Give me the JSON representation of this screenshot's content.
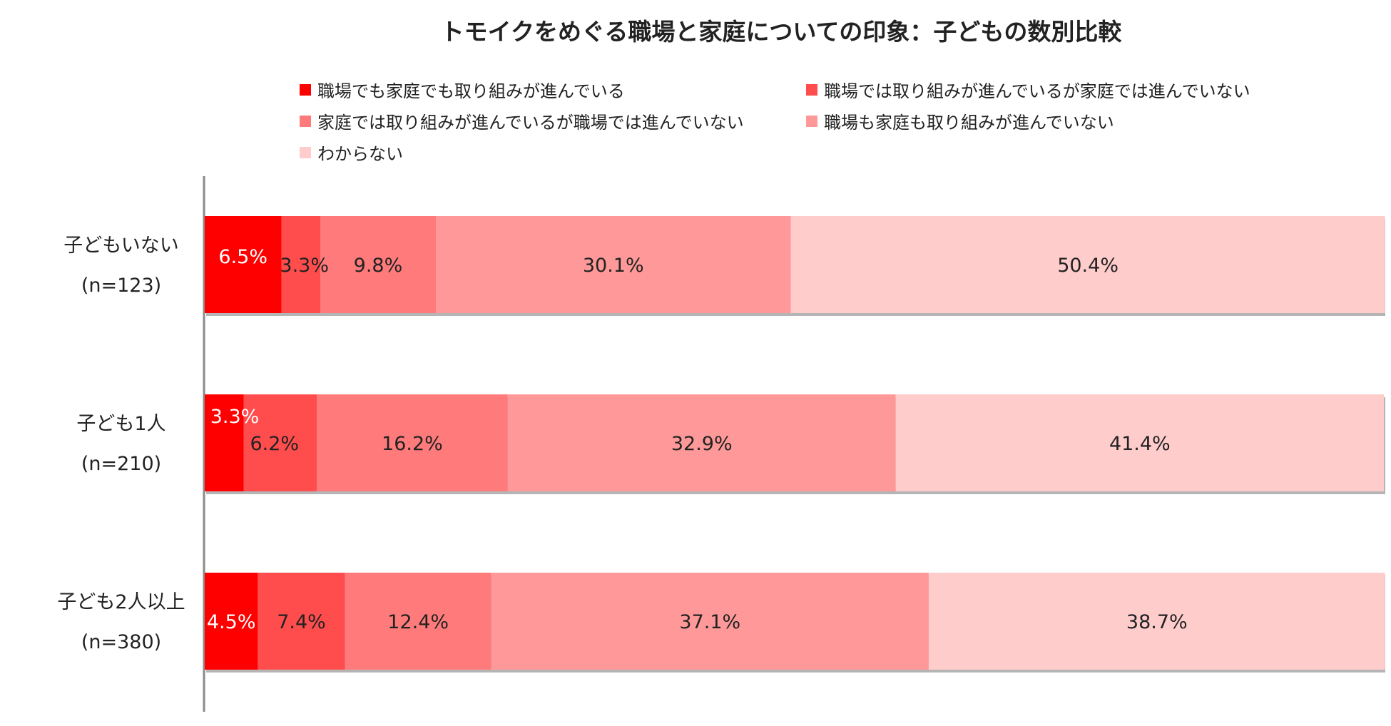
{
  "chart_data": {
    "type": "bar",
    "orientation": "horizontal",
    "stacked": true,
    "normalized_percent": true,
    "title": "トモイクをめぐる職場と家庭についての印象：子どもの数別比較",
    "categories": [
      "子どもいない",
      "子ども1人",
      "子ども2人以上"
    ],
    "category_sample_sizes": [
      "(n=123)",
      "(n=210)",
      "(n=380)"
    ],
    "series": [
      {
        "name": "職場でも家庭でも取り組みが進んでいる",
        "values": [
          6.5,
          3.3,
          4.5
        ],
        "labels": [
          "6.5%",
          "3.3%",
          "4.5%"
        ],
        "color": "#ff0000",
        "label_color": "#ffffff"
      },
      {
        "name": "職場では取り組みが進んでいるが家庭では進んでいない",
        "values": [
          3.3,
          6.2,
          7.4
        ],
        "labels": [
          "3.3%",
          "6.2%",
          "7.4%"
        ],
        "color": "#ff4d4d",
        "label_color": "#222222"
      },
      {
        "name": "家庭では取り組みが進んでいるが職場では進んでいない",
        "values": [
          9.8,
          16.2,
          12.4
        ],
        "labels": [
          "9.8%",
          "16.2%",
          "12.4%"
        ],
        "color": "#ff7b7b",
        "label_color": "#222222"
      },
      {
        "name": "職場も家庭も取り組みが進んでいない",
        "values": [
          30.1,
          32.9,
          37.1
        ],
        "labels": [
          "30.1%",
          "32.9%",
          "37.1%"
        ],
        "color": "#ff9999",
        "label_color": "#222222"
      },
      {
        "name": "わからない",
        "values": [
          50.4,
          41.4,
          38.7
        ],
        "labels": [
          "50.4%",
          "41.4%",
          "38.7%"
        ],
        "color": "#ffcccc",
        "label_color": "#222222"
      }
    ],
    "xlim": [
      0,
      100
    ],
    "grid": false,
    "legend_position": "top"
  }
}
